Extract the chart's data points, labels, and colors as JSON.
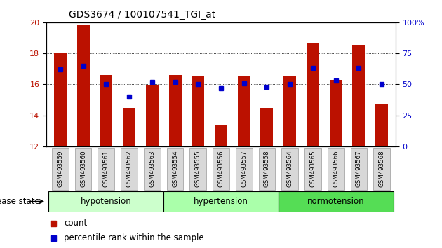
{
  "title": "GDS3674 / 100107541_TGI_at",
  "samples": [
    "GSM493559",
    "GSM493560",
    "GSM493561",
    "GSM493562",
    "GSM493563",
    "GSM493554",
    "GSM493555",
    "GSM493556",
    "GSM493557",
    "GSM493558",
    "GSM493564",
    "GSM493565",
    "GSM493566",
    "GSM493567",
    "GSM493568"
  ],
  "red_values": [
    18.0,
    19.85,
    16.6,
    14.5,
    15.95,
    16.6,
    16.5,
    13.35,
    16.5,
    14.5,
    16.5,
    18.65,
    16.3,
    18.55,
    14.75
  ],
  "blue_values_pct": [
    62,
    65,
    50,
    40,
    52,
    52,
    50,
    47,
    51,
    48,
    50,
    63,
    53,
    63,
    50
  ],
  "groups": [
    {
      "label": "hypotension",
      "start": 0,
      "end": 5,
      "color": "#ccffcc"
    },
    {
      "label": "hypertension",
      "start": 5,
      "end": 10,
      "color": "#aaffaa"
    },
    {
      "label": "normotension",
      "start": 10,
      "end": 15,
      "color": "#55dd55"
    }
  ],
  "ylim": [
    12,
    20
  ],
  "yticks": [
    12,
    14,
    16,
    18,
    20
  ],
  "right_yticks_pct": [
    0,
    25,
    50,
    75,
    100
  ],
  "bar_color": "#bb1100",
  "dot_color": "#0000cc",
  "background_color": "#ffffff",
  "disease_state_label": "disease state",
  "legend_count": "count",
  "legend_pct": "percentile rank within the sample"
}
